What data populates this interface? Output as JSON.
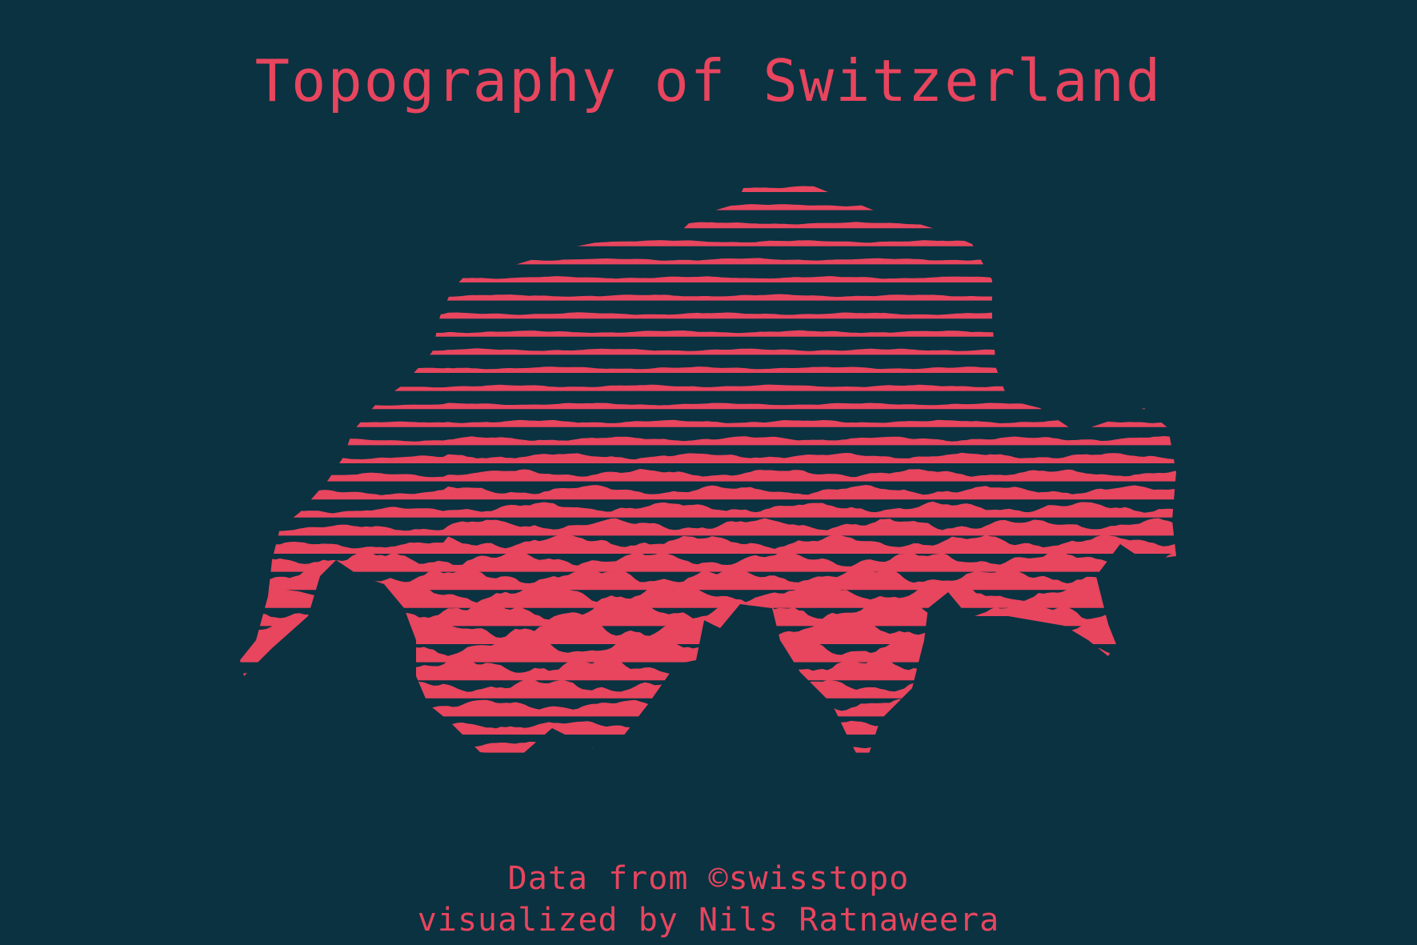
{
  "title": "Topography of Switzerland",
  "credits": {
    "data_source": "Data from ©swisstopo",
    "author": "visualized by Nils Ratnaweera"
  },
  "colors": {
    "background": "#0a3241",
    "accent": "#e8455e"
  }
}
